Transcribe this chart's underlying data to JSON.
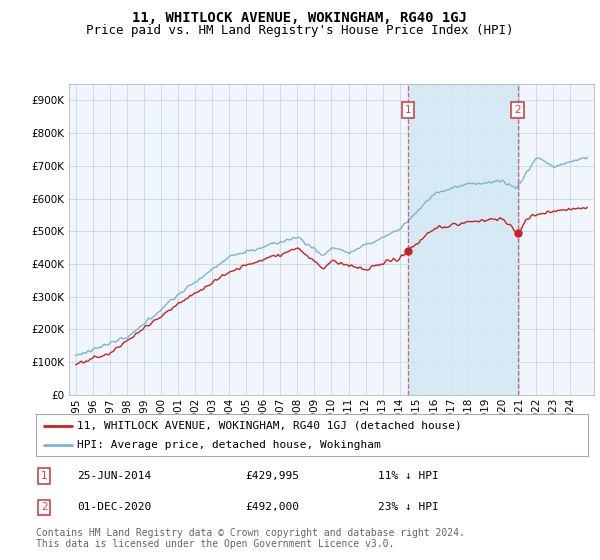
{
  "title": "11, WHITLOCK AVENUE, WOKINGHAM, RG40 1GJ",
  "subtitle": "Price paid vs. HM Land Registry's House Price Index (HPI)",
  "hpi_color": "#7ab4d8",
  "price_color": "#cc2222",
  "shade_color": "#d0e8f5",
  "dashed_line_color": "#cc4444",
  "background_color": "#ffffff",
  "plot_bg_color": "#f0f6fc",
  "grid_color": "#c8d8e8",
  "ylim": [
    0,
    950000
  ],
  "yticks": [
    0,
    100000,
    200000,
    300000,
    400000,
    500000,
    600000,
    700000,
    800000,
    900000
  ],
  "xlim_start": 1994.6,
  "xlim_end": 2025.4,
  "legend_entries": [
    "11, WHITLOCK AVENUE, WOKINGHAM, RG40 1GJ (detached house)",
    "HPI: Average price, detached house, Wokingham"
  ],
  "annotation1": {
    "label": "1",
    "date_label": "25-JUN-2014",
    "price_label": "£429,995",
    "pct_label": "11% ↓ HPI",
    "x_year": 2014.48,
    "y": 429995
  },
  "annotation2": {
    "label": "2",
    "date_label": "01-DEC-2020",
    "price_label": "£492,000",
    "pct_label": "23% ↓ HPI",
    "x_year": 2020.92,
    "y": 492000
  },
  "footer": "Contains HM Land Registry data © Crown copyright and database right 2024.\nThis data is licensed under the Open Government Licence v3.0.",
  "title_fontsize": 10,
  "subtitle_fontsize": 9,
  "tick_fontsize": 7.5,
  "legend_fontsize": 8,
  "footer_fontsize": 7
}
